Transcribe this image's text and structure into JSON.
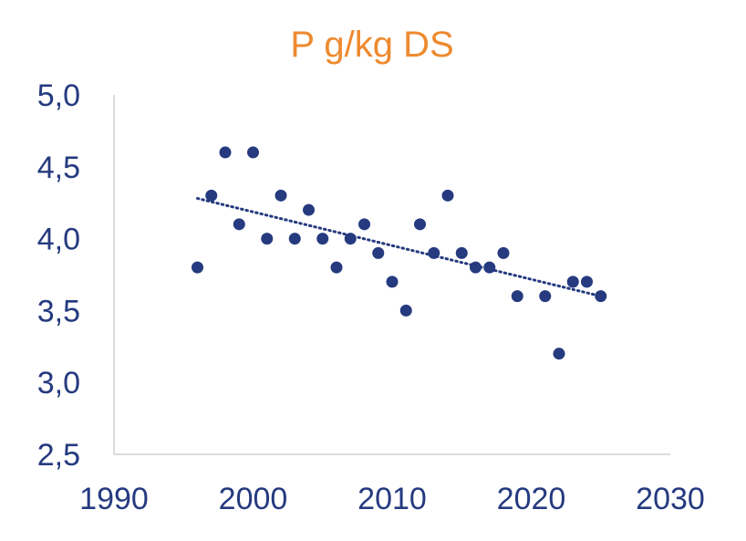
{
  "chart_data": {
    "type": "scatter",
    "title": "P g/kg DS",
    "xlabel": "",
    "ylabel": "",
    "xlim": [
      1990,
      2030
    ],
    "ylim": [
      2.5,
      5.0
    ],
    "x_ticks": [
      "1990",
      "2000",
      "2010",
      "2020",
      "2030"
    ],
    "y_ticks": [
      "5,0",
      "4,5",
      "4,0",
      "3,5",
      "3,0",
      "2,5"
    ],
    "grid": false,
    "legend": "none",
    "points": [
      [
        1996,
        3.8
      ],
      [
        1997,
        4.3
      ],
      [
        1998,
        4.6
      ],
      [
        1999,
        4.1
      ],
      [
        2000,
        4.6
      ],
      [
        2001,
        4.0
      ],
      [
        2002,
        4.3
      ],
      [
        2003,
        4.0
      ],
      [
        2004,
        4.2
      ],
      [
        2005,
        4.0
      ],
      [
        2006,
        3.8
      ],
      [
        2007,
        4.0
      ],
      [
        2008,
        4.1
      ],
      [
        2009,
        3.9
      ],
      [
        2010,
        3.7
      ],
      [
        2011,
        3.5
      ],
      [
        2012,
        4.1
      ],
      [
        2013,
        3.9
      ],
      [
        2014,
        4.3
      ],
      [
        2015,
        3.9
      ],
      [
        2016,
        3.8
      ],
      [
        2017,
        3.8
      ],
      [
        2018,
        3.9
      ],
      [
        2019,
        3.6
      ],
      [
        2021,
        3.6
      ],
      [
        2022,
        3.2
      ],
      [
        2023,
        3.7
      ],
      [
        2024,
        3.7
      ],
      [
        2025,
        3.6
      ]
    ],
    "trendline": {
      "type": "linear",
      "style": "dotted",
      "from": [
        1996,
        4.28
      ],
      "to": [
        2025,
        3.6
      ]
    },
    "colors": {
      "title": "#ee8a2f",
      "marker": "#253a7f",
      "tick": "#253a7f",
      "axis": "#d0d0d0"
    }
  }
}
